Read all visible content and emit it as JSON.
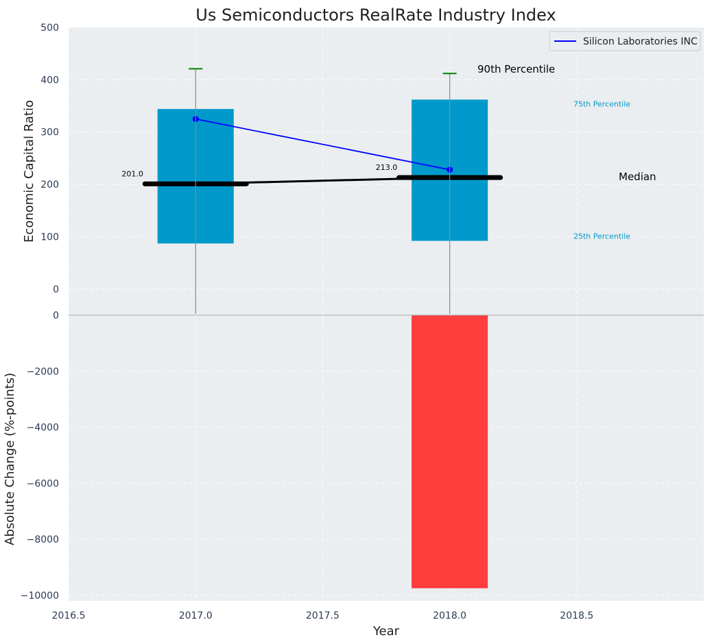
{
  "chart_data": {
    "title": "Us Semiconductors RealRate Industry Index",
    "xlabel": "Year",
    "x_ticks": [
      "2016.5",
      "2017.0",
      "2017.5",
      "2018.0",
      "2018.5"
    ],
    "xlim": [
      2016.5,
      2019.0
    ],
    "top_panel": {
      "type": "bar",
      "ylabel": "Economic Capital Ratio",
      "ylim": [
        -50,
        500
      ],
      "y_ticks": [
        "0",
        "100",
        "200",
        "300",
        "400",
        "500"
      ],
      "grid": true,
      "legend": {
        "placement": "top-right",
        "entries": [
          "Silicon Laboratories INC"
        ]
      },
      "x": [
        2017,
        2018
      ],
      "p25": [
        87,
        92
      ],
      "p75": [
        344,
        362
      ],
      "p90": [
        421,
        412
      ],
      "median": [
        201,
        213
      ],
      "median_labels": [
        "201.0",
        "213.0"
      ],
      "series": [
        {
          "name": "Silicon Laboratories INC",
          "values": [
            325,
            228
          ],
          "color": "#0000ff"
        }
      ],
      "annotations": {
        "p90": "90th Percentile",
        "p75": "75th Percentile",
        "median": "Median",
        "p25": "25th Percentile"
      },
      "colors": {
        "box": "#0099cc",
        "whisker_cap": "#008000",
        "median_line": "#000000"
      }
    },
    "bottom_panel": {
      "type": "bar",
      "ylabel": "Absolute Change (%-points)",
      "ylim": [
        -10200,
        0
      ],
      "y_ticks": [
        "0",
        "−2000",
        "−4000",
        "−6000",
        "−8000",
        "−10000"
      ],
      "grid": true,
      "x": [
        2017,
        2018
      ],
      "values": [
        0,
        -9750
      ],
      "color": "#ff3333"
    }
  }
}
